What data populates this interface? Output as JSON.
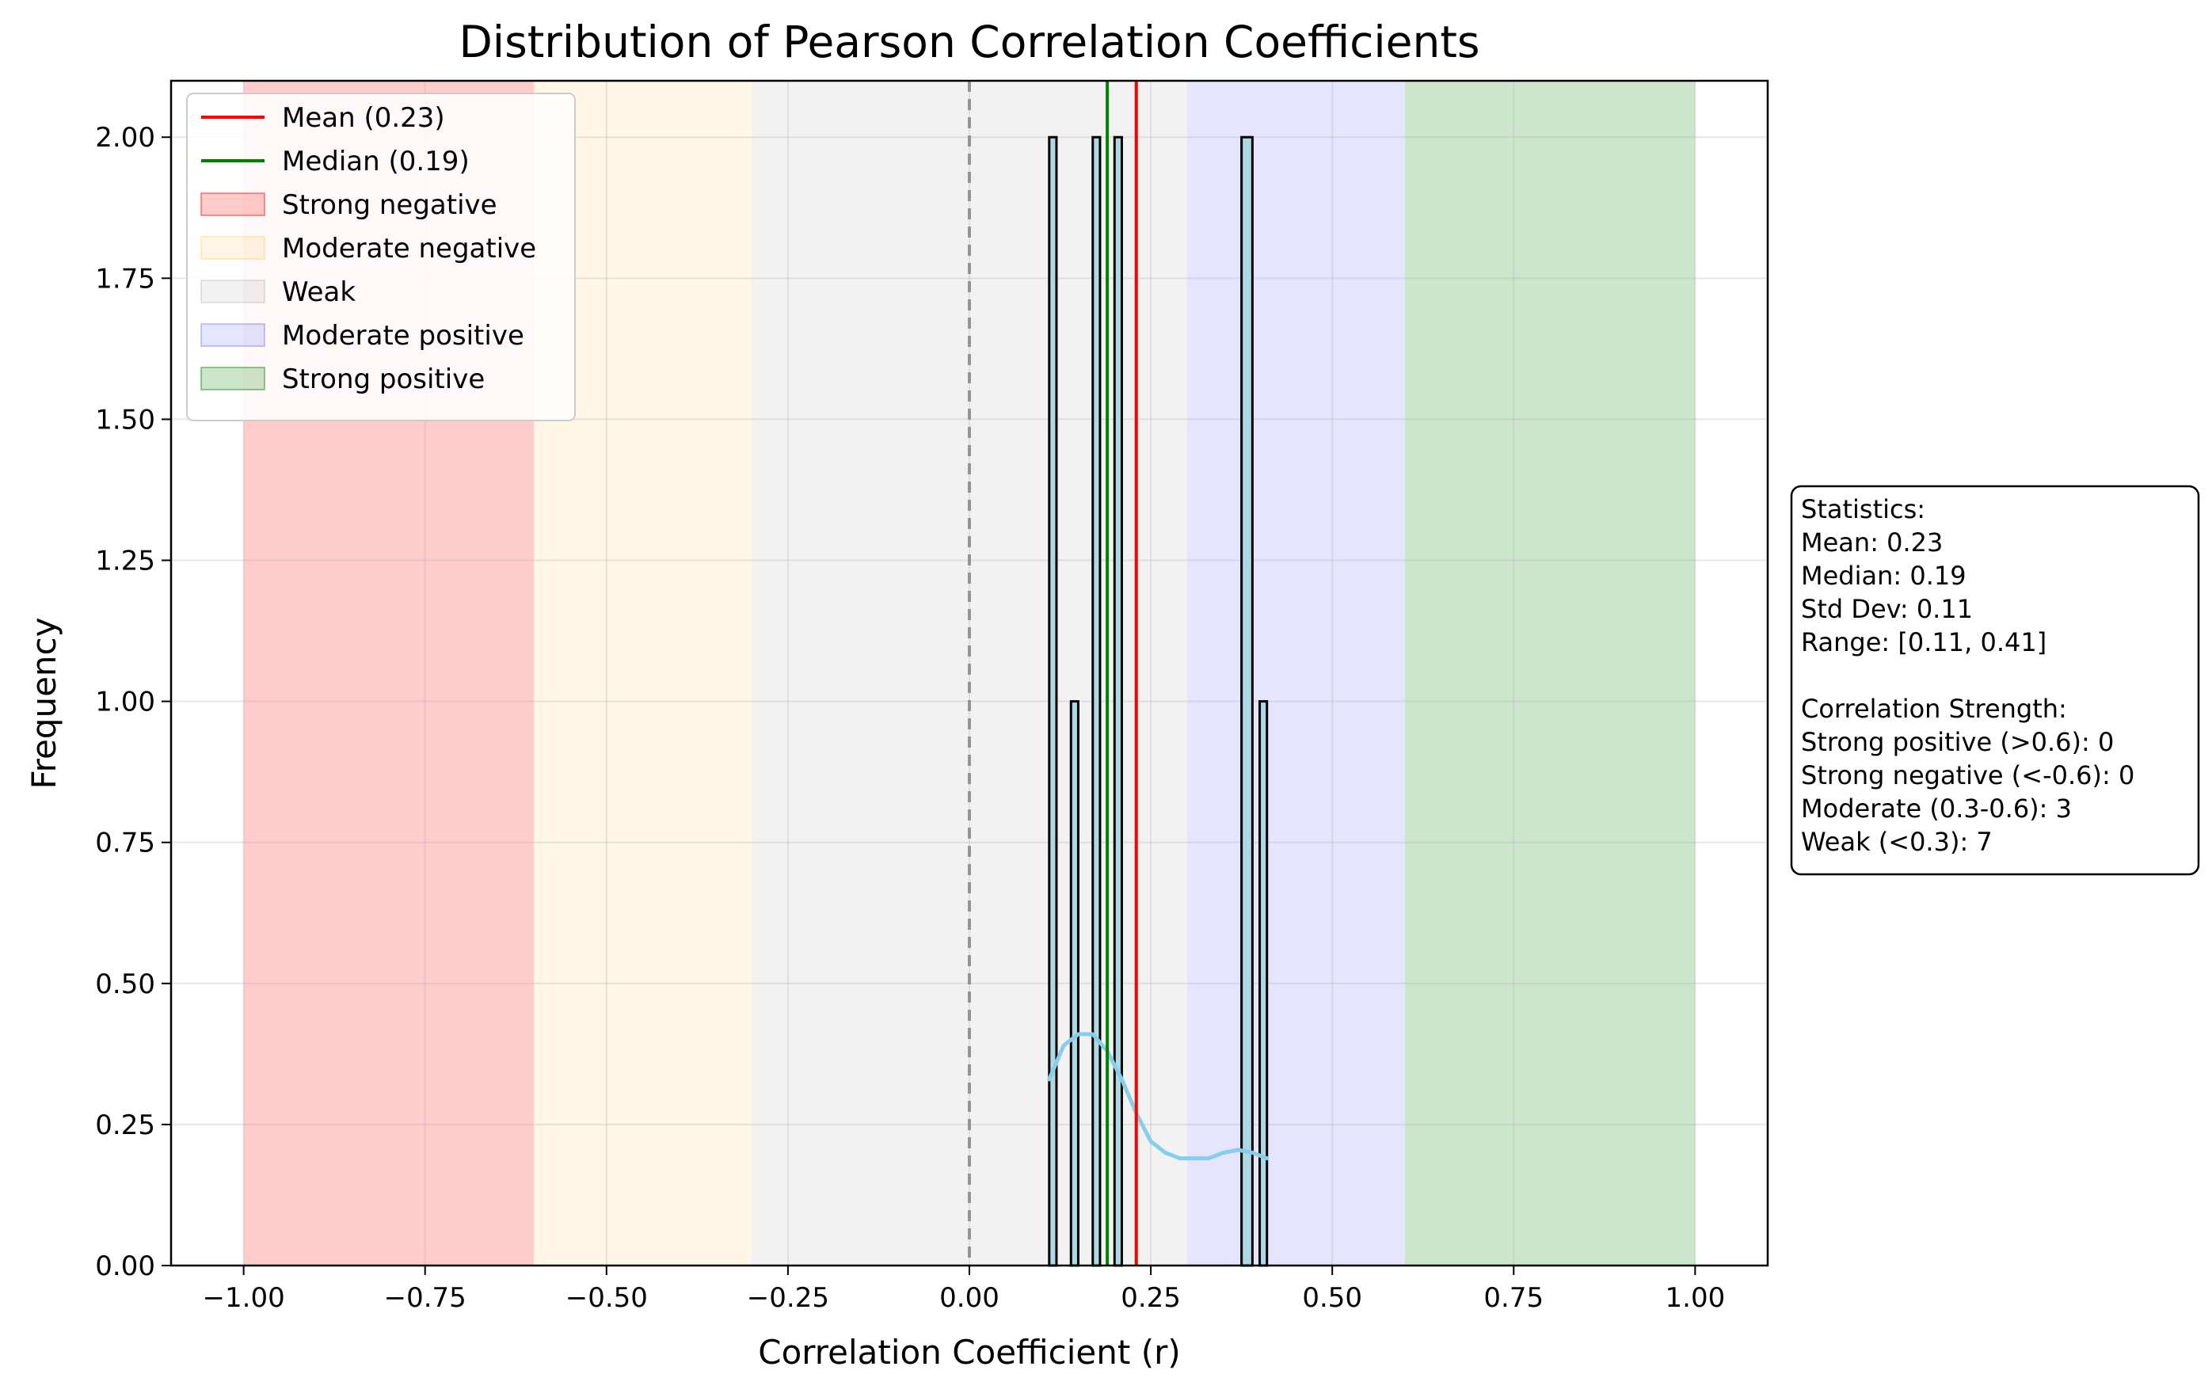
{
  "chart_data": {
    "type": "bar",
    "title": "Distribution of Pearson Correlation Coefficients",
    "xlabel": "Correlation Coefficient (r)",
    "ylabel": "Frequency",
    "xlim": [
      -1.1,
      1.1
    ],
    "ylim": [
      0,
      2.1
    ],
    "grid": true,
    "x_ticks": [
      "−1.00",
      "−0.75",
      "−0.50",
      "−0.25",
      "0.00",
      "0.25",
      "0.50",
      "0.75",
      "1.00"
    ],
    "x_tick_values": [
      -1.0,
      -0.75,
      -0.5,
      -0.25,
      0.0,
      0.25,
      0.5,
      0.75,
      1.0
    ],
    "y_ticks": [
      "0.00",
      "0.25",
      "0.50",
      "0.75",
      "1.00",
      "1.25",
      "1.50",
      "1.75",
      "2.00"
    ],
    "y_tick_values": [
      0,
      0.25,
      0.5,
      0.75,
      1.0,
      1.25,
      1.5,
      1.75,
      2.0
    ],
    "histogram": {
      "bins": [
        {
          "start": 0.11,
          "end": 0.12,
          "count": 2
        },
        {
          "start": 0.12,
          "end": 0.14,
          "count": 0
        },
        {
          "start": 0.14,
          "end": 0.15,
          "count": 1
        },
        {
          "start": 0.15,
          "end": 0.17,
          "count": 0
        },
        {
          "start": 0.17,
          "end": 0.18,
          "count": 2
        },
        {
          "start": 0.18,
          "end": 0.2,
          "count": 0
        },
        {
          "start": 0.2,
          "end": 0.21,
          "count": 2
        },
        {
          "start": 0.21,
          "end": 0.375,
          "count": 0
        },
        {
          "start": 0.375,
          "end": 0.39,
          "count": 2
        },
        {
          "start": 0.39,
          "end": 0.4,
          "count": 0
        },
        {
          "start": 0.4,
          "end": 0.41,
          "count": 1
        }
      ],
      "color": "#add8e6",
      "edge_color": "#000000"
    },
    "kde": {
      "color": "#87ceeb",
      "x": [
        0.11,
        0.13,
        0.15,
        0.17,
        0.19,
        0.21,
        0.23,
        0.25,
        0.27,
        0.29,
        0.31,
        0.33,
        0.35,
        0.37,
        0.39,
        0.41
      ],
      "y": [
        0.33,
        0.39,
        0.41,
        0.41,
        0.38,
        0.33,
        0.27,
        0.22,
        0.2,
        0.19,
        0.19,
        0.19,
        0.2,
        0.205,
        0.2,
        0.19
      ]
    },
    "regions": [
      {
        "name": "Strong negative",
        "from": -1.0,
        "to": -0.6,
        "color": "#ff0000",
        "alpha": 0.2
      },
      {
        "name": "Moderate negative",
        "from": -0.6,
        "to": -0.3,
        "color": "#ffa500",
        "alpha": 0.1
      },
      {
        "name": "Weak",
        "from": -0.3,
        "to": 0.3,
        "color": "#808080",
        "alpha": 0.1
      },
      {
        "name": "Moderate positive",
        "from": 0.3,
        "to": 0.6,
        "color": "#0000ff",
        "alpha": 0.1
      },
      {
        "name": "Strong positive",
        "from": 0.6,
        "to": 1.0,
        "color": "#008000",
        "alpha": 0.2
      }
    ],
    "lines": [
      {
        "name": "Mean (0.23)",
        "x": 0.23,
        "color": "#ff0000"
      },
      {
        "name": "Median (0.19)",
        "x": 0.19,
        "color": "#008000"
      }
    ],
    "zero_line": {
      "x": 0.0,
      "color": "#808080",
      "style": "dashed"
    },
    "legend": {
      "placement": "upper-left",
      "entries": [
        {
          "label": "Mean (0.23)",
          "kind": "line",
          "color": "#ff0000"
        },
        {
          "label": "Median (0.19)",
          "kind": "line",
          "color": "#008000"
        },
        {
          "label": "Strong negative",
          "kind": "patch",
          "color": "#ff0000",
          "alpha": 0.2
        },
        {
          "label": "Moderate negative",
          "kind": "patch",
          "color": "#ffa500",
          "alpha": 0.1
        },
        {
          "label": "Weak",
          "kind": "patch",
          "color": "#808080",
          "alpha": 0.1
        },
        {
          "label": "Moderate positive",
          "kind": "patch",
          "color": "#0000ff",
          "alpha": 0.1
        },
        {
          "label": "Strong positive",
          "kind": "patch",
          "color": "#008000",
          "alpha": 0.2
        }
      ]
    },
    "stats_box": {
      "placement": "right",
      "lines": [
        "Statistics:",
        "Mean: 0.23",
        "Median: 0.19",
        "Std Dev: 0.11",
        "Range: [0.11, 0.41]",
        "",
        "Correlation Strength:",
        "Strong positive (>0.6): 0",
        "Strong negative (<-0.6): 0",
        "Moderate (0.3-0.6): 3",
        "Weak (<0.3): 7"
      ]
    }
  }
}
